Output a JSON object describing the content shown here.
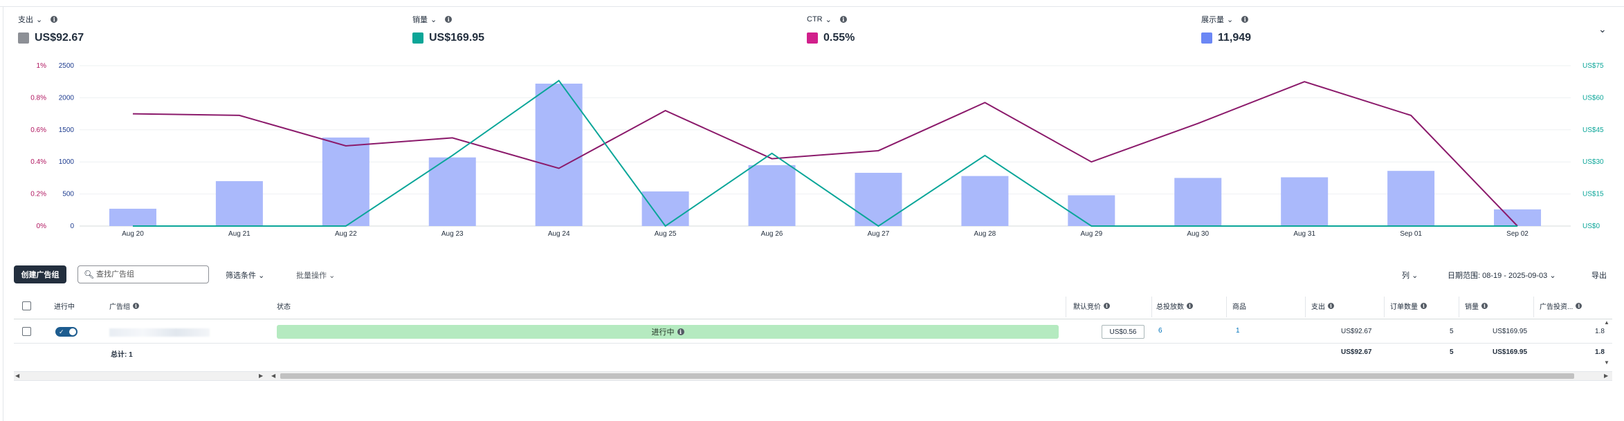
{
  "metrics": [
    {
      "label": "支出",
      "value": "US$92.67",
      "color": "#8d9096"
    },
    {
      "label": "销量",
      "value": "US$169.95",
      "color": "#0aa597"
    },
    {
      "label": "CTR",
      "value": "0.55%",
      "color": "#d11f8b"
    },
    {
      "label": "展示量",
      "value": "11,949",
      "color": "#6b87f5"
    }
  ],
  "chart_data": {
    "type": "bar",
    "categories": [
      "Aug 20",
      "Aug 21",
      "Aug 22",
      "Aug 23",
      "Aug 24",
      "Aug 25",
      "Aug 26",
      "Aug 27",
      "Aug 28",
      "Aug 29",
      "Aug 30",
      "Aug 31",
      "Sep 01",
      "Sep 02"
    ],
    "series": [
      {
        "name": "展示量",
        "type": "bar",
        "axis": "left-count",
        "color": "#aab9fb",
        "values": [
          270,
          700,
          1380,
          1070,
          2220,
          540,
          950,
          830,
          780,
          480,
          750,
          760,
          860,
          260
        ]
      },
      {
        "name": "CTR",
        "type": "line",
        "axis": "left-percent",
        "color": "#8b1a6b",
        "values": [
          0.7,
          0.69,
          0.5,
          0.55,
          0.36,
          0.72,
          0.42,
          0.47,
          0.77,
          0.4,
          0.64,
          0.9,
          0.69,
          0.0
        ]
      },
      {
        "name": "销量",
        "type": "line",
        "axis": "right-currency",
        "color": "#0ba699",
        "values": [
          0,
          0,
          0,
          33,
          68,
          0,
          34,
          0,
          33,
          0,
          0,
          0,
          0,
          0
        ]
      }
    ],
    "left_percent_ticks": [
      "0%",
      "0.2%",
      "0.4%",
      "0.6%",
      "0.8%",
      "1%"
    ],
    "left_count_ticks": [
      "0",
      "500",
      "1000",
      "1500",
      "2000",
      "2500"
    ],
    "right_currency_ticks": [
      "US$0",
      "US$15",
      "US$30",
      "US$45",
      "US$60",
      "US$75"
    ],
    "ylim_count": [
      0,
      2500
    ],
    "ylim_percent": [
      0,
      1
    ],
    "ylim_currency": [
      0,
      75
    ]
  },
  "toolbar": {
    "create_label": "创建广告组",
    "search_placeholder": "查找广告组",
    "filter_label": "筛选条件",
    "bulk_label": "批量操作",
    "columns_label": "列",
    "date_range": "日期范围: 08-19 - 2025-09-03",
    "export_label": "导出"
  },
  "table": {
    "headers": {
      "active": "进行中",
      "ad_group": "广告组",
      "status": "状态",
      "default_bid": "默认竞价",
      "total_targets": "总投放数",
      "products": "商品",
      "spend": "支出",
      "orders": "订单数量",
      "sales": "销量",
      "acos": "广告投资..."
    },
    "row": {
      "status": "进行中",
      "default_bid": "US$0.56",
      "total_targets": "6",
      "products": "1",
      "spend": "US$92.67",
      "orders": "5",
      "sales": "US$169.95",
      "acos": "1.8"
    },
    "totals": {
      "label": "总计: 1",
      "spend": "US$92.67",
      "orders": "5",
      "sales": "US$169.95",
      "acos": "1.8"
    }
  }
}
